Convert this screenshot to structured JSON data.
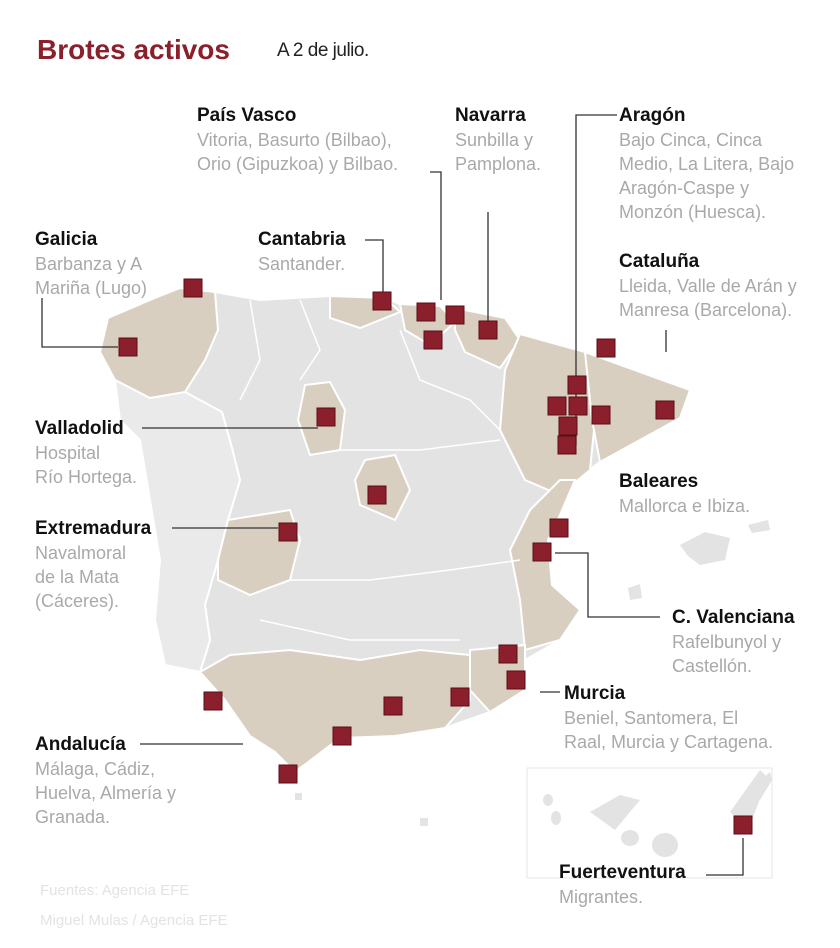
{
  "header": {
    "title": "Brotes activos",
    "date": "A 2 de julio."
  },
  "colors": {
    "title": "#8b1f2c",
    "marker": "#8b1f2c",
    "outbreak_region": "#d9cfc0",
    "other_region": "#e3e3e3",
    "leader": "#333333"
  },
  "regions": {
    "pais_vasco": {
      "name": "País Vasco",
      "desc": "Vitoria, Basurto (Bilbao),\nOrio (Gipuzkoa) y Bilbao."
    },
    "navarra": {
      "name": "Navarra",
      "desc": "Sunbilla y\nPamplona."
    },
    "aragon": {
      "name": "Aragón",
      "desc": "Bajo Cinca, Cinca\nMedio, La Litera,  Bajo\nAragón-Caspe y\nMonzón (Huesca)."
    },
    "galicia": {
      "name": "Galicia",
      "desc": "Barbanza y A\nMariña (Lugo)"
    },
    "cantabria": {
      "name": "Cantabria",
      "desc": "Santander."
    },
    "cataluna": {
      "name": "Cataluña",
      "desc": "Lleida, Valle de Arán y\nManresa (Barcelona)."
    },
    "valladolid": {
      "name": "Valladolid",
      "desc": "Hospital\nRío Hortega."
    },
    "baleares": {
      "name": "Baleares",
      "desc": "Mallorca e Ibiza."
    },
    "extremadura": {
      "name": "Extremadura",
      "desc": "Navalmoral\nde la Mata\n(Cáceres)."
    },
    "c_valenciana": {
      "name": "C. Valenciana",
      "desc": "Rafelbunyol y\nCastellón."
    },
    "murcia": {
      "name": "Murcia",
      "desc": "Beniel, Santomera, El\nRaal, Murcia y Cartagena."
    },
    "andalucia": {
      "name": "Andalucía",
      "desc": "Málaga, Cádiz,\nHuelva, Almería y\nGranada."
    },
    "fuerteventura": {
      "name": "Fuerteventura",
      "desc": "Migrantes."
    }
  },
  "source": "Fuentes: Agencia EFE\nMiguel Mulas / Agencia EFE"
}
